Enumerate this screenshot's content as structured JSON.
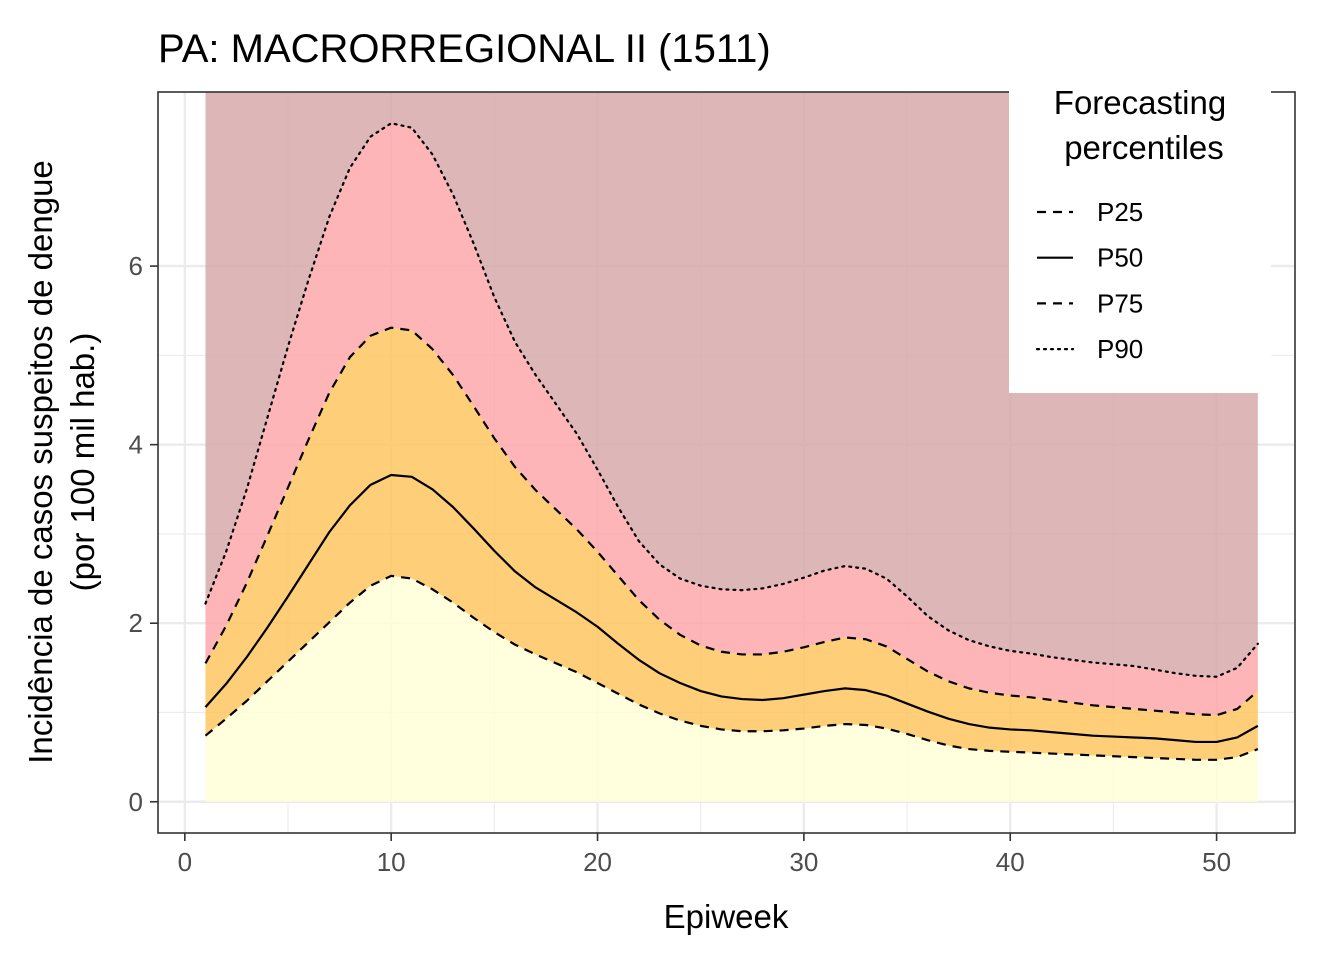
{
  "chart_data": {
    "type": "area",
    "title": "PA: MACRORREGIONAL II (1511)",
    "xlabel": "Epiweek",
    "ylabel_line1": "Incidência de casos suspeitos de dengue",
    "ylabel_line2": "(por 100 mil hab.)",
    "xlim": [
      -1.3,
      53.8
    ],
    "ylim": [
      -0.35,
      7.95
    ],
    "x_ticks": [
      0,
      10,
      20,
      30,
      40,
      50
    ],
    "y_ticks": [
      0,
      2,
      4,
      6
    ],
    "grid": true,
    "legend": {
      "title_line1": "Forecasting",
      "title_line2": "percentiles",
      "position": "top-right",
      "entries": [
        {
          "label": "P25",
          "linestyle": "dashed"
        },
        {
          "label": "P50",
          "linestyle": "solid"
        },
        {
          "label": "P75",
          "linestyle": "dashed"
        },
        {
          "label": "P90",
          "linestyle": "dotted"
        }
      ]
    },
    "band_colors": {
      "below_p25": "#FFFFD6",
      "p25_p75": "#FEC35A",
      "p75_p90": "#FEA5A7",
      "above_p90": "#D5A6A8"
    },
    "x": [
      1,
      2,
      3,
      4,
      5,
      6,
      7,
      8,
      9,
      10,
      11,
      12,
      13,
      14,
      15,
      16,
      17,
      18,
      19,
      20,
      21,
      22,
      23,
      24,
      25,
      26,
      27,
      28,
      29,
      30,
      31,
      32,
      33,
      34,
      35,
      36,
      37,
      38,
      39,
      40,
      41,
      42,
      43,
      44,
      45,
      46,
      47,
      48,
      49,
      50,
      51,
      52
    ],
    "series": [
      {
        "name": "P25",
        "values": [
          0.74,
          0.93,
          1.13,
          1.35,
          1.57,
          1.79,
          2.01,
          2.23,
          2.42,
          2.53,
          2.5,
          2.38,
          2.23,
          2.06,
          1.9,
          1.76,
          1.65,
          1.55,
          1.45,
          1.33,
          1.21,
          1.09,
          0.99,
          0.91,
          0.85,
          0.81,
          0.79,
          0.79,
          0.8,
          0.82,
          0.85,
          0.87,
          0.86,
          0.82,
          0.76,
          0.69,
          0.63,
          0.59,
          0.57,
          0.56,
          0.55,
          0.54,
          0.53,
          0.52,
          0.51,
          0.5,
          0.49,
          0.48,
          0.47,
          0.47,
          0.5,
          0.59
        ]
      },
      {
        "name": "P50",
        "values": [
          1.06,
          1.32,
          1.62,
          1.95,
          2.3,
          2.66,
          3.02,
          3.32,
          3.55,
          3.66,
          3.64,
          3.5,
          3.3,
          3.06,
          2.81,
          2.58,
          2.4,
          2.26,
          2.12,
          1.96,
          1.77,
          1.59,
          1.44,
          1.33,
          1.24,
          1.18,
          1.15,
          1.14,
          1.16,
          1.2,
          1.24,
          1.27,
          1.25,
          1.19,
          1.1,
          1.01,
          0.93,
          0.87,
          0.83,
          0.81,
          0.8,
          0.78,
          0.76,
          0.74,
          0.73,
          0.72,
          0.71,
          0.69,
          0.67,
          0.67,
          0.72,
          0.85
        ]
      },
      {
        "name": "P75",
        "values": [
          1.55,
          1.97,
          2.45,
          2.98,
          3.52,
          4.06,
          4.58,
          4.98,
          5.22,
          5.31,
          5.28,
          5.07,
          4.78,
          4.43,
          4.07,
          3.75,
          3.49,
          3.27,
          3.05,
          2.8,
          2.53,
          2.26,
          2.04,
          1.87,
          1.75,
          1.68,
          1.65,
          1.65,
          1.68,
          1.73,
          1.79,
          1.84,
          1.82,
          1.74,
          1.6,
          1.46,
          1.35,
          1.27,
          1.22,
          1.19,
          1.17,
          1.14,
          1.11,
          1.08,
          1.06,
          1.04,
          1.02,
          1.0,
          0.98,
          0.97,
          1.04,
          1.24
        ]
      },
      {
        "name": "P90",
        "values": [
          2.22,
          2.8,
          3.5,
          4.3,
          5.1,
          5.85,
          6.55,
          7.1,
          7.45,
          7.6,
          7.55,
          7.25,
          6.8,
          6.25,
          5.65,
          5.15,
          4.78,
          4.45,
          4.12,
          3.72,
          3.3,
          2.92,
          2.66,
          2.5,
          2.42,
          2.38,
          2.37,
          2.39,
          2.44,
          2.51,
          2.59,
          2.64,
          2.61,
          2.5,
          2.3,
          2.08,
          1.92,
          1.81,
          1.74,
          1.69,
          1.66,
          1.62,
          1.59,
          1.56,
          1.54,
          1.52,
          1.48,
          1.44,
          1.41,
          1.4,
          1.5,
          1.77
        ]
      }
    ]
  }
}
